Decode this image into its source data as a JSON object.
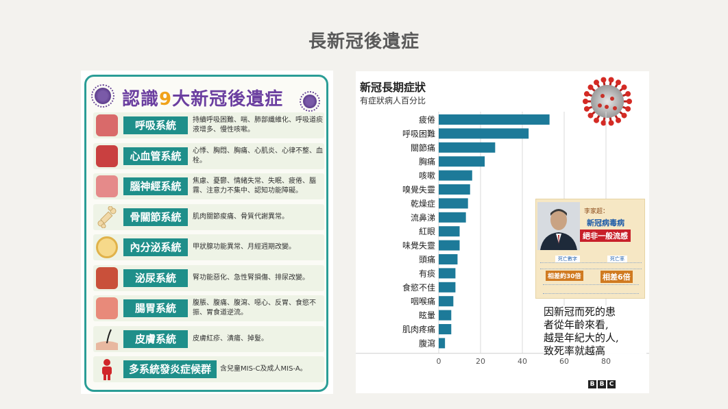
{
  "slide": {
    "title": "長新冠後遺症"
  },
  "infographic": {
    "title_prefix": "認識",
    "title_number": "9",
    "title_suffix": "大新冠後遺症",
    "systems": [
      {
        "icon": "lungs-icon",
        "color": "#d96a6a",
        "label": "呼吸系統",
        "desc": "持續呼吸困難、喘、肺部纖維化、呼吸道痰液增多、慢性咳嗽。"
      },
      {
        "icon": "heart-icon",
        "color": "#c94040",
        "label": "心血管系統",
        "desc": "心悸、胸悶、胸痛、心肌炎、心律不整、血栓。"
      },
      {
        "icon": "brain-icon",
        "color": "#e58a8a",
        "label": "腦神經系統",
        "desc": "焦慮、憂鬱、情緒失常、失眠、疲倦、腦霧、注意力不集中、認知功能障礙。"
      },
      {
        "icon": "bone-icon",
        "color": "#f1d9a8",
        "label": "骨關節系統",
        "desc": "肌肉關節痠痛、骨質代謝異常。"
      },
      {
        "icon": "thyroid-icon",
        "color": "#f6d98a",
        "label": "內分泌系統",
        "desc": "甲狀腺功能異常、月經週期改變。"
      },
      {
        "icon": "kidney-icon",
        "color": "#c9503a",
        "label": "泌尿系統",
        "desc": "腎功能惡化、急性腎損傷、排尿改變。"
      },
      {
        "icon": "intestine-icon",
        "color": "#e88a7a",
        "label": "腸胃系統",
        "desc": "腹脹、腹痛、腹瀉、噁心、反胃、食慾不振、胃食道逆流。"
      },
      {
        "icon": "hair-icon",
        "color": "#e8b8a0",
        "label": "皮膚系統",
        "desc": "皮膚紅疹、潰瘍、掉髮。"
      },
      {
        "icon": "person-icon",
        "color": "#d0262a",
        "label": "多系統發炎症候群",
        "desc": "含兒童MIS-C及成人MIS-A。"
      }
    ]
  },
  "chart": {
    "title": "新冠長期症狀",
    "subtitle": "有症狀病人百分比",
    "source": [
      "B",
      "B",
      "C"
    ]
  },
  "chart_data": {
    "type": "bar",
    "orientation": "horizontal",
    "title": "新冠長期症狀",
    "subtitle": "有症狀病人百分比",
    "categories": [
      "疲倦",
      "呼吸困難",
      "關節痛",
      "胸痛",
      "咳嗽",
      "嗅覺失靈",
      "乾燥症",
      "流鼻涕",
      "紅眼",
      "味覺失靈",
      "頭痛",
      "有痰",
      "食慾不佳",
      "咽喉痛",
      "眩暈",
      "肌肉疼痛",
      "腹瀉"
    ],
    "values": [
      53,
      43,
      27,
      22,
      16,
      15,
      14,
      13,
      10,
      10,
      9,
      8,
      8,
      7,
      6,
      6,
      3
    ],
    "xlim": [
      0,
      80
    ],
    "xticks": [
      "0",
      "20",
      "40",
      "60",
      "80"
    ],
    "bar_color": "#1d7a99",
    "grid": true
  },
  "inset": {
    "name": "李家超：",
    "quote_line1": "新冠病毒病",
    "quote_line2": "絕非一般流感",
    "left_heading": "死亡數字",
    "right_heading": "死亡率",
    "left_diff": "相差約30倍",
    "right_diff": "相差6倍"
  },
  "annotation": {
    "lines": [
      "因新冠而死的患",
      "者從年齡來看,",
      "越是年紀大的人,",
      "致死率就越高"
    ]
  }
}
